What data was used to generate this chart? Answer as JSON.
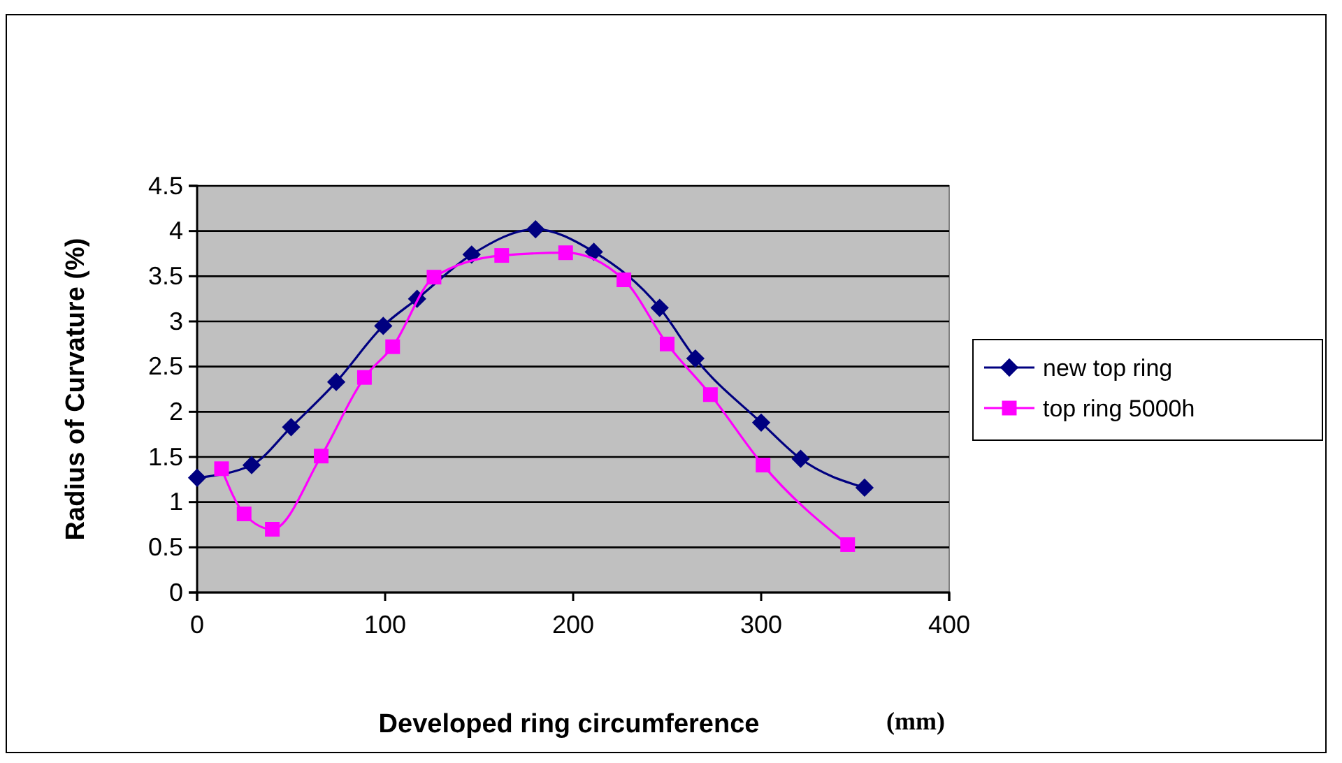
{
  "chart_data": {
    "type": "line",
    "xlabel": "Developed ring circumference",
    "ylabel": "Radius of Curvature (%)",
    "annotations": [
      "(mm)"
    ],
    "xlim": [
      0,
      400
    ],
    "xticks": [
      0,
      100,
      200,
      300,
      400
    ],
    "ylim": [
      0,
      4.5
    ],
    "yticks": [
      0,
      0.5,
      1,
      1.5,
      2,
      2.5,
      3,
      3.5,
      4,
      4.5
    ],
    "grid": "y",
    "legend": "right",
    "series": [
      {
        "name": "new top ring",
        "color": "#000080",
        "marker": "diamond",
        "x": [
          0,
          29,
          50,
          74,
          99,
          117,
          146,
          180,
          211,
          246,
          265,
          300,
          321,
          355
        ],
        "values": [
          1.27,
          1.41,
          1.83,
          2.33,
          2.95,
          3.25,
          3.74,
          4.02,
          3.77,
          3.15,
          2.59,
          1.88,
          1.48,
          1.16
        ]
      },
      {
        "name": "top ring 5000h",
        "color": "#ff00ff",
        "marker": "square",
        "x": [
          13,
          25,
          40,
          66,
          89,
          104,
          126,
          162,
          196,
          227,
          250,
          273,
          301,
          346
        ],
        "values": [
          1.37,
          0.87,
          0.7,
          1.51,
          2.38,
          2.72,
          3.49,
          3.73,
          3.76,
          3.46,
          2.75,
          2.19,
          1.41,
          0.53
        ]
      }
    ]
  }
}
